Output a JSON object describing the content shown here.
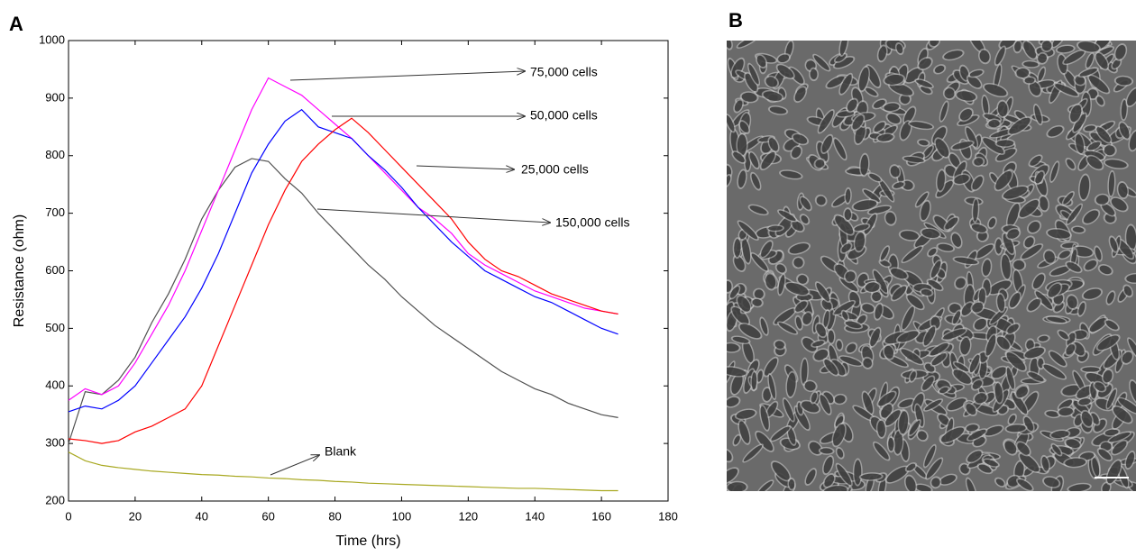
{
  "panels": [
    "A",
    "B"
  ],
  "chart_data": {
    "type": "line",
    "xlabel": "Time (hrs)",
    "ylabel": "Resistance (ohm)",
    "x": [
      0,
      5,
      10,
      15,
      20,
      25,
      30,
      35,
      40,
      45,
      50,
      55,
      60,
      65,
      70,
      75,
      80,
      85,
      90,
      95,
      100,
      105,
      110,
      115,
      120,
      125,
      130,
      135,
      140,
      145,
      150,
      155,
      160,
      165
    ],
    "series": [
      {
        "name": "150,000 cells",
        "color": "#505050",
        "values": [
          300,
          390,
          385,
          410,
          450,
          510,
          560,
          620,
          690,
          740,
          780,
          795,
          790,
          760,
          735,
          700,
          670,
          640,
          610,
          585,
          555,
          530,
          505,
          485,
          465,
          445,
          425,
          410,
          395,
          385,
          370,
          360,
          350,
          345
        ]
      },
      {
        "name": "75,000 cells",
        "color": "#ff00ff",
        "values": [
          375,
          395,
          385,
          400,
          440,
          490,
          540,
          600,
          670,
          740,
          810,
          880,
          935,
          920,
          905,
          880,
          855,
          830,
          800,
          770,
          740,
          710,
          690,
          665,
          630,
          610,
          595,
          580,
          565,
          555,
          545,
          535,
          530,
          525
        ]
      },
      {
        "name": "50,000 cells",
        "color": "#0000ff",
        "values": [
          355,
          365,
          360,
          375,
          400,
          440,
          480,
          520,
          570,
          630,
          700,
          770,
          820,
          860,
          880,
          850,
          840,
          830,
          800,
          775,
          745,
          710,
          680,
          650,
          625,
          600,
          585,
          570,
          555,
          545,
          530,
          515,
          500,
          490
        ]
      },
      {
        "name": "25,000 cells",
        "color": "#ff0000",
        "values": [
          308,
          305,
          300,
          305,
          320,
          330,
          345,
          360,
          400,
          470,
          540,
          610,
          680,
          740,
          790,
          820,
          845,
          865,
          840,
          810,
          780,
          750,
          720,
          690,
          650,
          620,
          600,
          590,
          575,
          560,
          550,
          540,
          530,
          525
        ]
      },
      {
        "name": "Blank",
        "color": "#a8a820",
        "values": [
          285,
          270,
          262,
          258,
          255,
          252,
          250,
          248,
          246,
          245,
          243,
          242,
          240,
          239,
          237,
          236,
          234,
          233,
          231,
          230,
          229,
          228,
          227,
          226,
          225,
          224,
          223,
          222,
          222,
          221,
          220,
          219,
          218,
          218
        ]
      }
    ],
    "xlim": [
      0,
      180
    ],
    "xticks": [
      0,
      20,
      40,
      60,
      80,
      100,
      120,
      140,
      160,
      180
    ],
    "ylim": [
      200,
      1000
    ],
    "yticks": [
      200,
      300,
      400,
      500,
      600,
      700,
      800,
      900,
      1000
    ]
  }
}
